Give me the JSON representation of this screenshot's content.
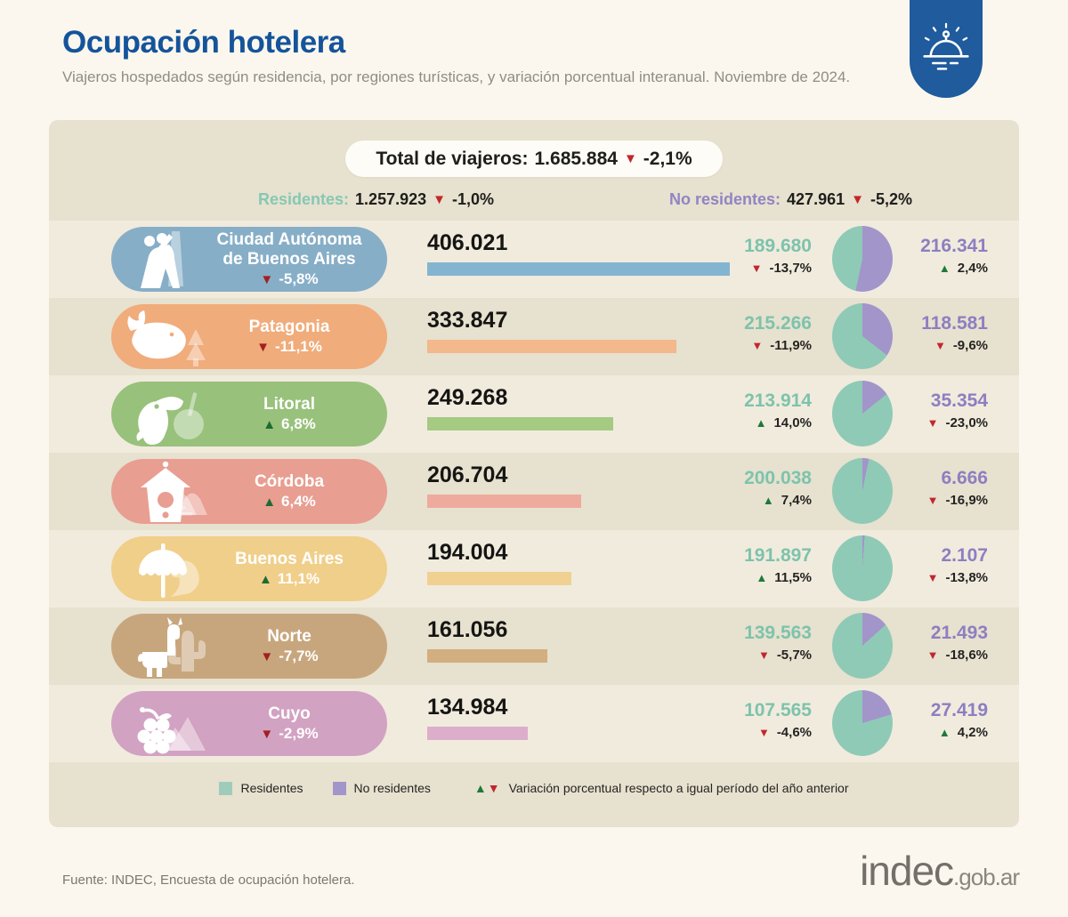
{
  "header": {
    "title": "Ocupación hotelera",
    "subtitle": "Viajeros hospedados según residencia, por regiones turísticas, y variación porcentual interanual. Noviembre de 2024."
  },
  "badge": {
    "icon": "cloche-icon",
    "color": "#1f5b9d"
  },
  "summary": {
    "total": {
      "label": "Total de viajeros:",
      "value": "1.685.884",
      "change": "-2,1%",
      "dir": "down"
    },
    "residents": {
      "label": "Residentes:",
      "value": "1.257.923",
      "change": "-1,0%",
      "dir": "down"
    },
    "nonresidents": {
      "label": "No residentes:",
      "value": "427.961",
      "change": "-5,2%",
      "dir": "down"
    }
  },
  "rows": [
    {
      "name": "Ciudad Autónoma\nde Buenos Aires",
      "change": "-5,8%",
      "dir": "down",
      "total": "406.021",
      "icon": "tango-obelisk-icon",
      "pill_color": "#87aec7",
      "bar_color": "#83b5d0",
      "residents": {
        "value": "189.680",
        "change": "-13,7%",
        "dir": "down"
      },
      "nonresidents": {
        "value": "216.341",
        "change": "2,4%",
        "dir": "up"
      }
    },
    {
      "name": "Patagonia",
      "change": "-11,1%",
      "dir": "down",
      "total": "333.847",
      "icon": "whale-tree-icon",
      "pill_color": "#f0ac7b",
      "bar_color": "#f3b88c",
      "residents": {
        "value": "215.266",
        "change": "-11,9%",
        "dir": "down"
      },
      "nonresidents": {
        "value": "118.581",
        "change": "-9,6%",
        "dir": "down"
      }
    },
    {
      "name": "Litoral",
      "change": "6,8%",
      "dir": "up",
      "total": "249.268",
      "icon": "toucan-mate-icon",
      "pill_color": "#98c17b",
      "bar_color": "#a5ca82",
      "residents": {
        "value": "213.914",
        "change": "14,0%",
        "dir": "up"
      },
      "nonresidents": {
        "value": "35.354",
        "change": "-23,0%",
        "dir": "down"
      }
    },
    {
      "name": "Córdoba",
      "change": "6,4%",
      "dir": "up",
      "total": "206.704",
      "icon": "birdhouse-hills-icon",
      "pill_color": "#e89e91",
      "bar_color": "#efaa9e",
      "residents": {
        "value": "200.038",
        "change": "7,4%",
        "dir": "up"
      },
      "nonresidents": {
        "value": "6.666",
        "change": "-16,9%",
        "dir": "down"
      }
    },
    {
      "name": "Buenos Aires",
      "change": "11,1%",
      "dir": "up",
      "total": "194.004",
      "icon": "umbrella-wave-icon",
      "pill_color": "#f0cf8a",
      "bar_color": "#f0d192",
      "residents": {
        "value": "191.897",
        "change": "11,5%",
        "dir": "up"
      },
      "nonresidents": {
        "value": "2.107",
        "change": "-13,8%",
        "dir": "down"
      }
    },
    {
      "name": "Norte",
      "change": "-7,7%",
      "dir": "down",
      "total": "161.056",
      "icon": "llama-cactus-icon",
      "pill_color": "#c8a67d",
      "bar_color": "#d2ae81",
      "residents": {
        "value": "139.563",
        "change": "-5,7%",
        "dir": "down"
      },
      "nonresidents": {
        "value": "21.493",
        "change": "-18,6%",
        "dir": "down"
      }
    },
    {
      "name": "Cuyo",
      "change": "-2,9%",
      "dir": "down",
      "total": "134.984",
      "icon": "grapes-mountains-icon",
      "pill_color": "#d2a2c2",
      "bar_color": "#dcaecb",
      "residents": {
        "value": "107.565",
        "change": "-4,6%",
        "dir": "down"
      },
      "nonresidents": {
        "value": "27.419",
        "change": "4,2%",
        "dir": "up"
      }
    }
  ],
  "legend": {
    "residents": "Residentes",
    "nonresidents": "No residentes",
    "variation": "Variación porcentual respecto a igual período del año anterior",
    "residents_color": "#9fccba",
    "nonresidents_color": "#a295ca"
  },
  "footer": {
    "source": "Fuente: INDEC, Encuesta de ocupación hotelera.",
    "logo": "indec",
    "logo_suffix": ".gob.ar"
  },
  "chart_data": {
    "type": "bar",
    "title": "Ocupación hotelera",
    "subtitle": "Viajeros hospedados según residencia, por regiones turísticas, y variación porcentual interanual. Noviembre de 2024.",
    "categories": [
      "Ciudad Autónoma de Buenos Aires",
      "Patagonia",
      "Litoral",
      "Córdoba",
      "Buenos Aires",
      "Norte",
      "Cuyo"
    ],
    "series": [
      {
        "name": "Total de viajeros",
        "values": [
          406021,
          333847,
          249268,
          206704,
          194004,
          161056,
          134984
        ],
        "variation_pct": [
          -5.8,
          -11.1,
          6.8,
          6.4,
          11.1,
          -7.7,
          -2.9
        ]
      },
      {
        "name": "Residentes",
        "values": [
          189680,
          215266,
          213914,
          200038,
          191897,
          139563,
          107565
        ],
        "variation_pct": [
          -13.7,
          -11.9,
          14.0,
          7.4,
          11.5,
          -5.7,
          -4.6
        ]
      },
      {
        "name": "No residentes",
        "values": [
          216341,
          118581,
          35354,
          6666,
          2107,
          21493,
          27419
        ],
        "variation_pct": [
          2.4,
          -9.6,
          -23.0,
          -16.9,
          -13.8,
          -18.6,
          4.2
        ]
      }
    ],
    "totals": {
      "total": 1685884,
      "total_variation_pct": -2.1,
      "residentes": 1257923,
      "residentes_variation_pct": -1.0,
      "no_residentes": 427961,
      "no_residentes_variation_pct": -5.2
    },
    "legend_position": "bottom",
    "grid": false,
    "colors": {
      "residents": "#8fcab6",
      "nonresidents": "#a295ca"
    }
  }
}
